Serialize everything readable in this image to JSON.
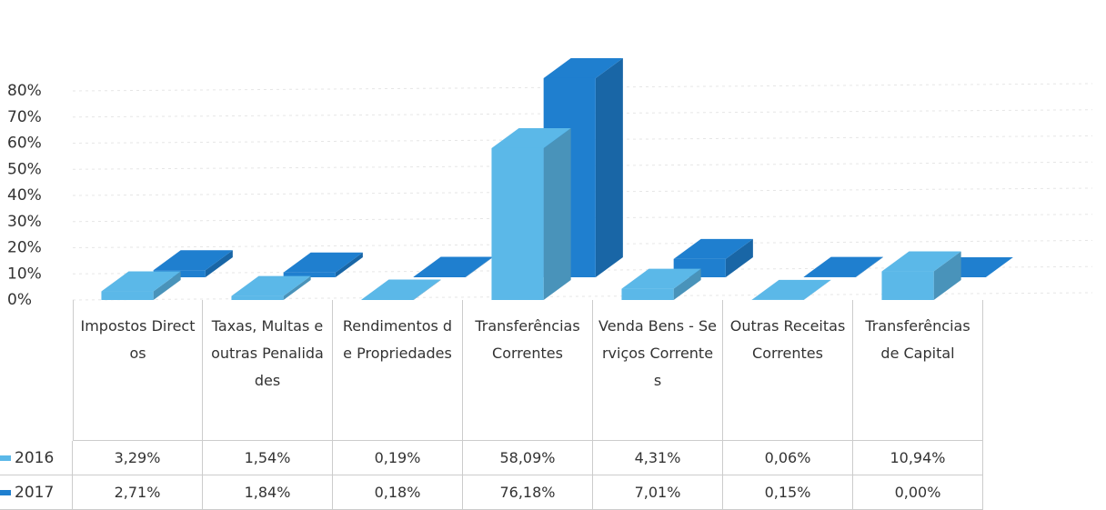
{
  "chart_data": {
    "type": "bar",
    "categories": [
      "Impostos Directos",
      "Taxas, Multas e outras Penalidades",
      "Rendimentos de Propriedades",
      "Transferências Correntes",
      "Venda Bens - Serviços Correntes",
      "Outras Receitas Correntes",
      "Transferências de Capital"
    ],
    "series": [
      {
        "name": "2016",
        "color": "#5bb8e8",
        "values": [
          3.29,
          1.54,
          0.19,
          58.09,
          4.31,
          0.06,
          10.94
        ],
        "value_labels": [
          "3,29%",
          "1,54%",
          "0,19%",
          "58,09%",
          "4,31%",
          "0,06%",
          "10,94%"
        ]
      },
      {
        "name": "2017",
        "color": "#1f7fcf",
        "values": [
          2.71,
          1.84,
          0.18,
          76.18,
          7.01,
          0.15,
          0.0
        ],
        "value_labels": [
          "2,71%",
          "1,84%",
          "0,18%",
          "76,18%",
          "7,01%",
          "0,15%",
          "0,00%"
        ]
      }
    ],
    "ylim": [
      0,
      80
    ],
    "yticks": [
      {
        "value": 0,
        "label": "0%"
      },
      {
        "value": 10,
        "label": "10%"
      },
      {
        "value": 20,
        "label": "20%"
      },
      {
        "value": 30,
        "label": "30%"
      },
      {
        "value": 40,
        "label": "40%"
      },
      {
        "value": 50,
        "label": "50%"
      },
      {
        "value": 60,
        "label": "60%"
      },
      {
        "value": 70,
        "label": "70%"
      },
      {
        "value": 80,
        "label": "80%"
      }
    ],
    "grid": true
  }
}
